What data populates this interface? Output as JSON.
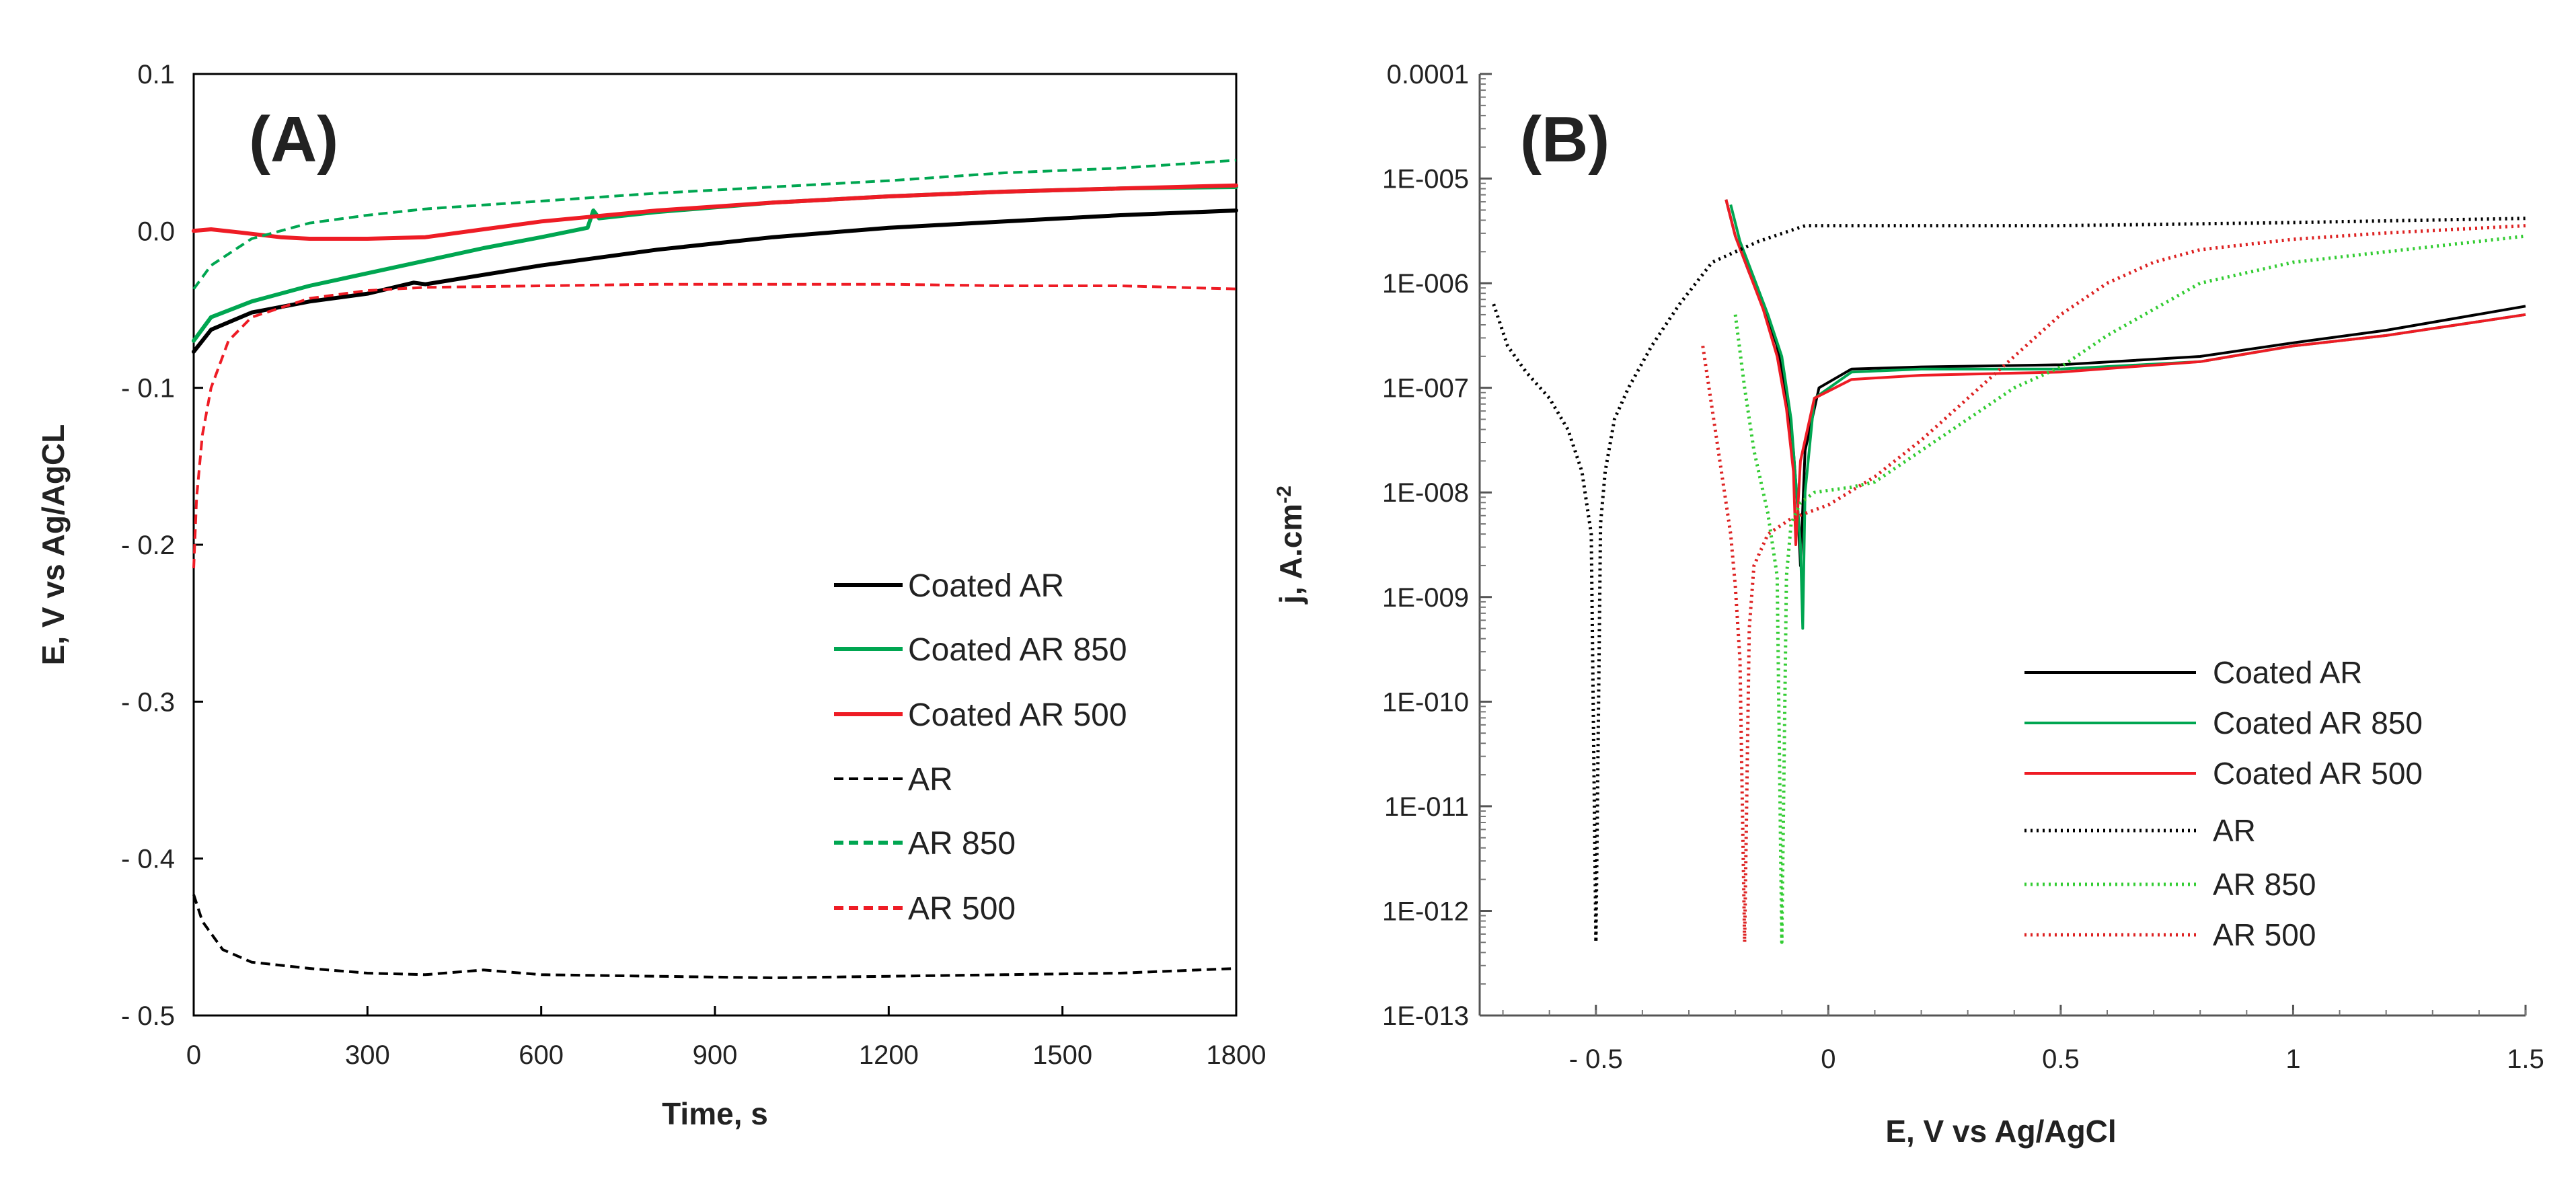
{
  "chart_data": [
    {
      "type": "line",
      "panel_label": "(A)",
      "xlabel": "Time, s",
      "ylabel": "E, V vs Ag/AgCL",
      "xlim": [
        0,
        1800
      ],
      "ylim": [
        -0.5,
        0.1
      ],
      "xticks": [
        0,
        300,
        600,
        900,
        1200,
        1500,
        1800
      ],
      "xtick_labels": [
        "0",
        "300",
        "600",
        "900",
        "1200",
        "1500",
        "1800"
      ],
      "yticks": [
        0.1,
        0.0,
        -0.1,
        -0.2,
        -0.3,
        -0.4,
        -0.5
      ],
      "ytick_labels": [
        "0.1",
        "0.0",
        "- 0.1",
        "- 0.2",
        "- 0.3",
        "- 0.4",
        "- 0.5"
      ],
      "legend_position": "lower-right",
      "series": [
        {
          "name": "Coated AR",
          "color": "#000000",
          "style": "solid",
          "x": [
            0,
            30,
            100,
            200,
            300,
            380,
            400,
            500,
            600,
            800,
            1000,
            1200,
            1400,
            1600,
            1800
          ],
          "y": [
            -0.077,
            -0.063,
            -0.052,
            -0.045,
            -0.04,
            -0.033,
            -0.034,
            -0.028,
            -0.022,
            -0.012,
            -0.004,
            0.002,
            0.006,
            0.01,
            0.013
          ]
        },
        {
          "name": "Coated AR 850",
          "color": "#00a651",
          "style": "solid",
          "x": [
            0,
            30,
            100,
            200,
            300,
            400,
            500,
            600,
            680,
            690,
            700,
            800,
            1000,
            1200,
            1400,
            1600,
            1800
          ],
          "y": [
            -0.07,
            -0.055,
            -0.045,
            -0.035,
            -0.027,
            -0.019,
            -0.011,
            -0.004,
            0.002,
            0.013,
            0.008,
            0.012,
            0.018,
            0.022,
            0.025,
            0.027,
            0.028
          ]
        },
        {
          "name": "Coated AR 500",
          "color": "#ee1c25",
          "style": "solid",
          "x": [
            0,
            30,
            80,
            150,
            200,
            300,
            400,
            500,
            600,
            800,
            1000,
            1200,
            1400,
            1600,
            1800
          ],
          "y": [
            0.0,
            0.001,
            -0.001,
            -0.004,
            -0.005,
            -0.005,
            -0.004,
            0.001,
            0.006,
            0.013,
            0.018,
            0.022,
            0.025,
            0.027,
            0.029
          ]
        },
        {
          "name": "AR",
          "color": "#000000",
          "style": "dashed",
          "x": [
            0,
            15,
            50,
            100,
            200,
            300,
            400,
            500,
            600,
            800,
            1000,
            1200,
            1400,
            1600,
            1800
          ],
          "y": [
            -0.423,
            -0.44,
            -0.458,
            -0.466,
            -0.47,
            -0.473,
            -0.474,
            -0.471,
            -0.474,
            -0.475,
            -0.476,
            -0.475,
            -0.474,
            -0.473,
            -0.47
          ]
        },
        {
          "name": "AR 850",
          "color": "#00a651",
          "style": "dashed",
          "x": [
            0,
            30,
            100,
            200,
            300,
            400,
            600,
            800,
            1000,
            1200,
            1400,
            1600,
            1800
          ],
          "y": [
            -0.037,
            -0.022,
            -0.005,
            0.005,
            0.01,
            0.014,
            0.019,
            0.024,
            0.028,
            0.032,
            0.037,
            0.04,
            0.045
          ]
        },
        {
          "name": "AR 500",
          "color": "#ee1c25",
          "style": "dashed",
          "x": [
            0,
            5,
            15,
            30,
            60,
            100,
            200,
            300,
            400,
            600,
            800,
            1000,
            1200,
            1400,
            1600,
            1800
          ],
          "y": [
            -0.215,
            -0.17,
            -0.13,
            -0.1,
            -0.07,
            -0.055,
            -0.043,
            -0.038,
            -0.036,
            -0.035,
            -0.034,
            -0.034,
            -0.034,
            -0.035,
            -0.035,
            -0.037
          ]
        }
      ]
    },
    {
      "type": "line",
      "panel_label": "(B)",
      "xlabel": "E, V vs Ag/AgCl",
      "ylabel": "j, A.cm",
      "ylabel_superscript": "-2",
      "yscale": "log",
      "xlim": [
        -0.75,
        1.5
      ],
      "ylim_log10": [
        -13,
        -4
      ],
      "xticks": [
        -0.5,
        0,
        0.5,
        1,
        1.5
      ],
      "xtick_labels": [
        "- 0.5",
        "0",
        "0.5",
        "1",
        "1.5"
      ],
      "yticks_log10": [
        -4,
        -5,
        -6,
        -7,
        -8,
        -9,
        -10,
        -11,
        -12,
        -13
      ],
      "ytick_labels": [
        "0.0001",
        "1E-005",
        "1E-006",
        "1E-007",
        "1E-008",
        "1E-009",
        "1E-010",
        "1E-011",
        "1E-012",
        "1E-013"
      ],
      "legend_position": "lower-right",
      "series": [
        {
          "name": "Coated AR",
          "color": "#000000",
          "style": "solid",
          "x": [
            -0.22,
            -0.2,
            -0.17,
            -0.14,
            -0.11,
            -0.09,
            -0.075,
            -0.065,
            -0.06,
            -0.05,
            -0.02,
            0.05,
            0.2,
            0.5,
            0.8,
            1.0,
            1.2,
            1.5
          ],
          "log10_y": [
            -5.2,
            -5.55,
            -5.9,
            -6.2,
            -6.6,
            -7.1,
            -7.6,
            -8.2,
            -8.7,
            -7.6,
            -7.0,
            -6.82,
            -6.8,
            -6.78,
            -6.7,
            -6.57,
            -6.45,
            -6.22
          ]
        },
        {
          "name": "Coated AR 850",
          "color": "#00a651",
          "style": "solid",
          "x": [
            -0.21,
            -0.19,
            -0.16,
            -0.13,
            -0.1,
            -0.08,
            -0.07,
            -0.06,
            -0.055,
            -0.05,
            -0.03,
            0.05,
            0.2,
            0.5,
            0.8,
            1.0,
            1.2,
            1.5
          ],
          "log10_y": [
            -5.25,
            -5.6,
            -5.95,
            -6.3,
            -6.7,
            -7.3,
            -7.9,
            -8.5,
            -9.3,
            -8.0,
            -7.1,
            -6.85,
            -6.82,
            -6.82,
            -6.75,
            -6.6,
            -6.5,
            -6.3
          ]
        },
        {
          "name": "Coated AR 500",
          "color": "#ee1c25",
          "style": "solid",
          "x": [
            -0.22,
            -0.2,
            -0.17,
            -0.14,
            -0.11,
            -0.09,
            -0.075,
            -0.07,
            -0.06,
            -0.03,
            0.05,
            0.2,
            0.5,
            0.8,
            1.0,
            1.2,
            1.5
          ],
          "log10_y": [
            -5.2,
            -5.55,
            -5.9,
            -6.25,
            -6.7,
            -7.2,
            -7.8,
            -8.5,
            -7.7,
            -7.1,
            -6.92,
            -6.88,
            -6.85,
            -6.75,
            -6.6,
            -6.5,
            -6.3
          ]
        },
        {
          "name": "AR",
          "color": "#000000",
          "style": "dotted",
          "x": [
            -0.72,
            -0.69,
            -0.65,
            -0.6,
            -0.56,
            -0.53,
            -0.51,
            -0.5,
            -0.49,
            -0.48,
            -0.46,
            -0.43,
            -0.38,
            -0.32,
            -0.25,
            -0.15,
            -0.05,
            0.05,
            0.2,
            0.5,
            1.0,
            1.5
          ],
          "log10_y": [
            -6.2,
            -6.6,
            -6.85,
            -7.1,
            -7.4,
            -7.8,
            -8.4,
            -12.3,
            -8.3,
            -7.8,
            -7.3,
            -7.0,
            -6.6,
            -6.2,
            -5.8,
            -5.6,
            -5.45,
            -5.45,
            -5.45,
            -5.45,
            -5.42,
            -5.38
          ]
        },
        {
          "name": "AR 850",
          "color": "#33cc33",
          "style": "dotted",
          "x": [
            -0.2,
            -0.18,
            -0.16,
            -0.13,
            -0.11,
            -0.1,
            -0.09,
            -0.08,
            -0.06,
            -0.03,
            0.05,
            0.1,
            0.2,
            0.3,
            0.4,
            0.5,
            0.6,
            0.8,
            1.0,
            1.2,
            1.5
          ],
          "log10_y": [
            -6.3,
            -7.0,
            -7.6,
            -8.2,
            -8.8,
            -12.3,
            -8.8,
            -8.3,
            -8.1,
            -8.0,
            -7.95,
            -7.9,
            -7.6,
            -7.3,
            -7.0,
            -6.8,
            -6.5,
            -6.0,
            -5.8,
            -5.7,
            -5.55
          ]
        },
        {
          "name": "AR 500",
          "color": "#dd2222",
          "style": "dotted",
          "x": [
            -0.27,
            -0.25,
            -0.23,
            -0.21,
            -0.2,
            -0.19,
            -0.18,
            -0.17,
            -0.16,
            -0.13,
            -0.08,
            0.0,
            0.1,
            0.2,
            0.3,
            0.4,
            0.5,
            0.6,
            0.7,
            0.8,
            1.0,
            1.2,
            1.5
          ],
          "log10_y": [
            -6.6,
            -7.2,
            -7.8,
            -8.4,
            -8.9,
            -9.6,
            -12.3,
            -9.3,
            -8.7,
            -8.4,
            -8.25,
            -8.12,
            -7.85,
            -7.5,
            -7.1,
            -6.7,
            -6.3,
            -6.0,
            -5.8,
            -5.68,
            -5.58,
            -5.52,
            -5.45
          ]
        }
      ]
    }
  ]
}
